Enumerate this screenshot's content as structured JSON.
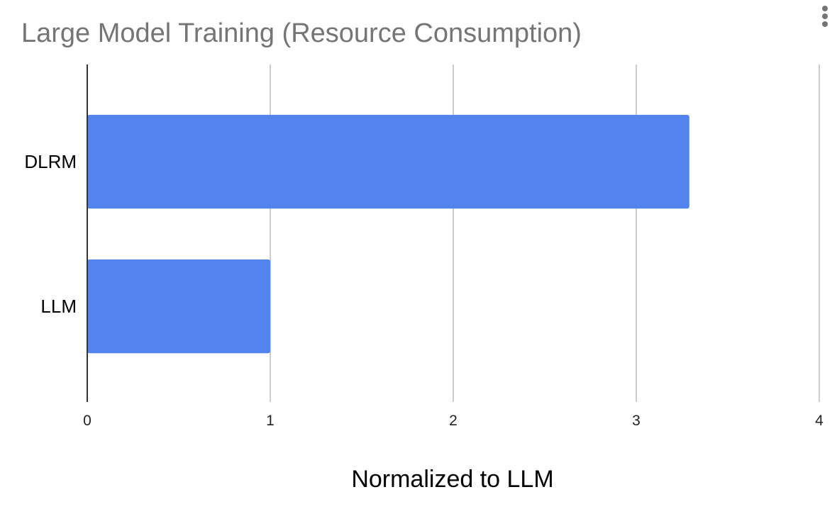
{
  "chart_data": {
    "type": "bar",
    "orientation": "horizontal",
    "title": "Large Model Training (Resource Consumption)",
    "xlabel": "Normalized to LLM",
    "ylabel": "",
    "categories": [
      "DLRM",
      "LLM"
    ],
    "values": [
      3.29,
      1.0
    ],
    "xlim": [
      0,
      4
    ],
    "xticks": [
      "0",
      "1",
      "2",
      "3",
      "4"
    ],
    "grid": true,
    "legend": "none"
  },
  "colors": {
    "bar": "#5383EC",
    "title": "#757575",
    "grid": "#CCCCCC",
    "baseline": "#333333"
  },
  "menu": {
    "icon": "more-vert-icon"
  }
}
